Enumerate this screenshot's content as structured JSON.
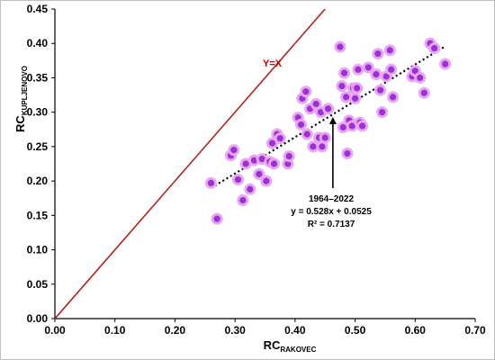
{
  "chart_data": {
    "type": "scatter",
    "xlabel": {
      "main": "RC",
      "sub": "RAKOVEC"
    },
    "ylabel": {
      "main": "RC",
      "sub": "KUPLJENOVO"
    },
    "xlim": [
      0,
      0.7
    ],
    "ylim": [
      0,
      0.45
    ],
    "x_ticks": [
      "0.00",
      "0.10",
      "0.20",
      "0.30",
      "0.40",
      "0.50",
      "0.60",
      "0.70"
    ],
    "y_ticks": [
      "0.00",
      "0.05",
      "0.10",
      "0.15",
      "0.20",
      "0.25",
      "0.30",
      "0.35",
      "0.40",
      "0.45"
    ],
    "grid": false,
    "identity_line": {
      "label": "Y=X",
      "color": "#b22222"
    },
    "trendline": {
      "slope": 0.528,
      "intercept": 0.0525,
      "x_range": [
        0.26,
        0.65
      ],
      "style": "dotted",
      "color": "#000000"
    },
    "annotation": {
      "period": "1964–2022",
      "equation": "y = 0.528x + 0.0525",
      "r2": "R² = 0.7137"
    },
    "marker_color": "#9b30d9",
    "marker_halo_color": "#e8a6ef",
    "points": [
      {
        "x": 0.26,
        "y": 0.197
      },
      {
        "x": 0.27,
        "y": 0.145
      },
      {
        "x": 0.293,
        "y": 0.237
      },
      {
        "x": 0.298,
        "y": 0.245
      },
      {
        "x": 0.305,
        "y": 0.202
      },
      {
        "x": 0.313,
        "y": 0.172
      },
      {
        "x": 0.318,
        "y": 0.225
      },
      {
        "x": 0.325,
        "y": 0.188
      },
      {
        "x": 0.332,
        "y": 0.23
      },
      {
        "x": 0.34,
        "y": 0.21
      },
      {
        "x": 0.345,
        "y": 0.232
      },
      {
        "x": 0.352,
        "y": 0.2
      },
      {
        "x": 0.358,
        "y": 0.228
      },
      {
        "x": 0.362,
        "y": 0.255
      },
      {
        "x": 0.365,
        "y": 0.225
      },
      {
        "x": 0.37,
        "y": 0.268
      },
      {
        "x": 0.375,
        "y": 0.262
      },
      {
        "x": 0.388,
        "y": 0.225
      },
      {
        "x": 0.39,
        "y": 0.236
      },
      {
        "x": 0.405,
        "y": 0.292
      },
      {
        "x": 0.41,
        "y": 0.282
      },
      {
        "x": 0.412,
        "y": 0.32
      },
      {
        "x": 0.418,
        "y": 0.33
      },
      {
        "x": 0.42,
        "y": 0.268
      },
      {
        "x": 0.425,
        "y": 0.305
      },
      {
        "x": 0.43,
        "y": 0.25
      },
      {
        "x": 0.435,
        "y": 0.312
      },
      {
        "x": 0.44,
        "y": 0.263
      },
      {
        "x": 0.443,
        "y": 0.3
      },
      {
        "x": 0.445,
        "y": 0.25
      },
      {
        "x": 0.45,
        "y": 0.263
      },
      {
        "x": 0.455,
        "y": 0.305
      },
      {
        "x": 0.475,
        "y": 0.395
      },
      {
        "x": 0.478,
        "y": 0.338
      },
      {
        "x": 0.48,
        "y": 0.278
      },
      {
        "x": 0.482,
        "y": 0.357
      },
      {
        "x": 0.485,
        "y": 0.322
      },
      {
        "x": 0.487,
        "y": 0.24
      },
      {
        "x": 0.49,
        "y": 0.288
      },
      {
        "x": 0.495,
        "y": 0.28
      },
      {
        "x": 0.497,
        "y": 0.335
      },
      {
        "x": 0.5,
        "y": 0.32
      },
      {
        "x": 0.503,
        "y": 0.335
      },
      {
        "x": 0.505,
        "y": 0.362
      },
      {
        "x": 0.508,
        "y": 0.285
      },
      {
        "x": 0.512,
        "y": 0.28
      },
      {
        "x": 0.522,
        "y": 0.365
      },
      {
        "x": 0.535,
        "y": 0.355
      },
      {
        "x": 0.538,
        "y": 0.385
      },
      {
        "x": 0.542,
        "y": 0.332
      },
      {
        "x": 0.545,
        "y": 0.3
      },
      {
        "x": 0.552,
        "y": 0.352
      },
      {
        "x": 0.558,
        "y": 0.39
      },
      {
        "x": 0.56,
        "y": 0.362
      },
      {
        "x": 0.563,
        "y": 0.322
      },
      {
        "x": 0.595,
        "y": 0.352
      },
      {
        "x": 0.6,
        "y": 0.36
      },
      {
        "x": 0.608,
        "y": 0.35
      },
      {
        "x": 0.615,
        "y": 0.328
      },
      {
        "x": 0.625,
        "y": 0.4
      },
      {
        "x": 0.632,
        "y": 0.393
      },
      {
        "x": 0.65,
        "y": 0.37
      }
    ]
  }
}
